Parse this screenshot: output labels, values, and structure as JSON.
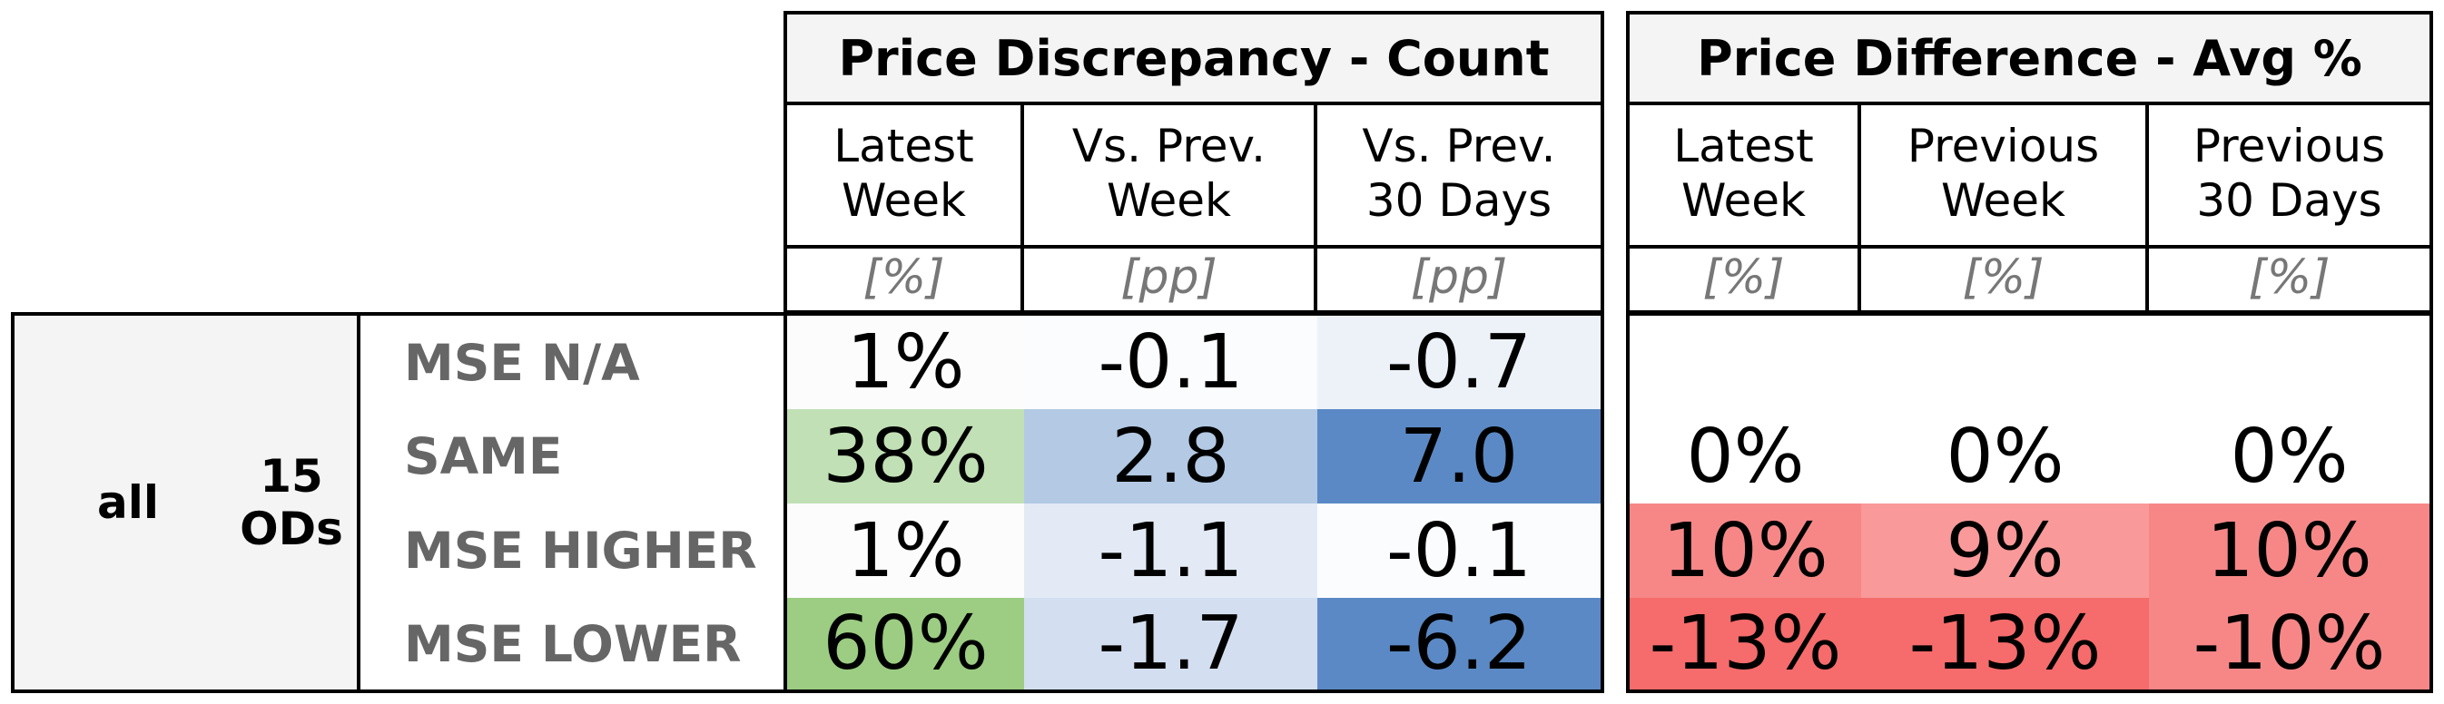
{
  "panels": {
    "count": {
      "title": "Price Discrepancy - Count",
      "columns": [
        {
          "label": "Latest\nWeek",
          "unit": "[%]"
        },
        {
          "label": "Vs. Prev.\nWeek",
          "unit": "[pp]"
        },
        {
          "label": "Vs. Prev.\n30 Days",
          "unit": "[pp]"
        }
      ]
    },
    "avg": {
      "title": "Price Difference - Avg %",
      "columns": [
        {
          "label": "Latest\nWeek",
          "unit": "[%]"
        },
        {
          "label": "Previous\nWeek",
          "unit": "[%]"
        },
        {
          "label": "Previous\n30 Days",
          "unit": "[%]"
        }
      ]
    }
  },
  "group": {
    "segment": "all",
    "ods": "15\nODs"
  },
  "rows": [
    {
      "label": "MSE N/A",
      "count": [
        "1%",
        "-0.1",
        "-0.7"
      ],
      "avg": [
        "",
        "",
        ""
      ],
      "count_colors": [
        "#fcfcfc",
        "#fbfcfe",
        "#edf2f9"
      ],
      "avg_colors": [
        "#ffffff",
        "#ffffff",
        "#ffffff"
      ]
    },
    {
      "label": "SAME",
      "count": [
        "38%",
        "2.8",
        "7.0"
      ],
      "avg": [
        "0%",
        "0%",
        "0%"
      ],
      "count_colors": [
        "#c1e0b5",
        "#b3c9e4",
        "#5b89c5"
      ],
      "avg_colors": [
        "#ffffff",
        "#ffffff",
        "#ffffff"
      ]
    },
    {
      "label": "MSE HIGHER",
      "count": [
        "1%",
        "-1.1",
        "-0.1"
      ],
      "avg": [
        "10%",
        "9%",
        "10%"
      ],
      "count_colors": [
        "#fcfcfc",
        "#e3eaf5",
        "#fbfcfe"
      ],
      "avg_colors": [
        "#f78787",
        "#f99999",
        "#f78787"
      ]
    },
    {
      "label": "MSE LOWER",
      "count": [
        "60%",
        "-1.7",
        "-6.2"
      ],
      "avg": [
        "-13%",
        "-13%",
        "-10%"
      ],
      "count_colors": [
        "#9ccd82",
        "#d3dff0",
        "#5b89c5"
      ],
      "avg_colors": [
        "#f66b6b",
        "#f66b6b",
        "#f78787"
      ]
    }
  ]
}
